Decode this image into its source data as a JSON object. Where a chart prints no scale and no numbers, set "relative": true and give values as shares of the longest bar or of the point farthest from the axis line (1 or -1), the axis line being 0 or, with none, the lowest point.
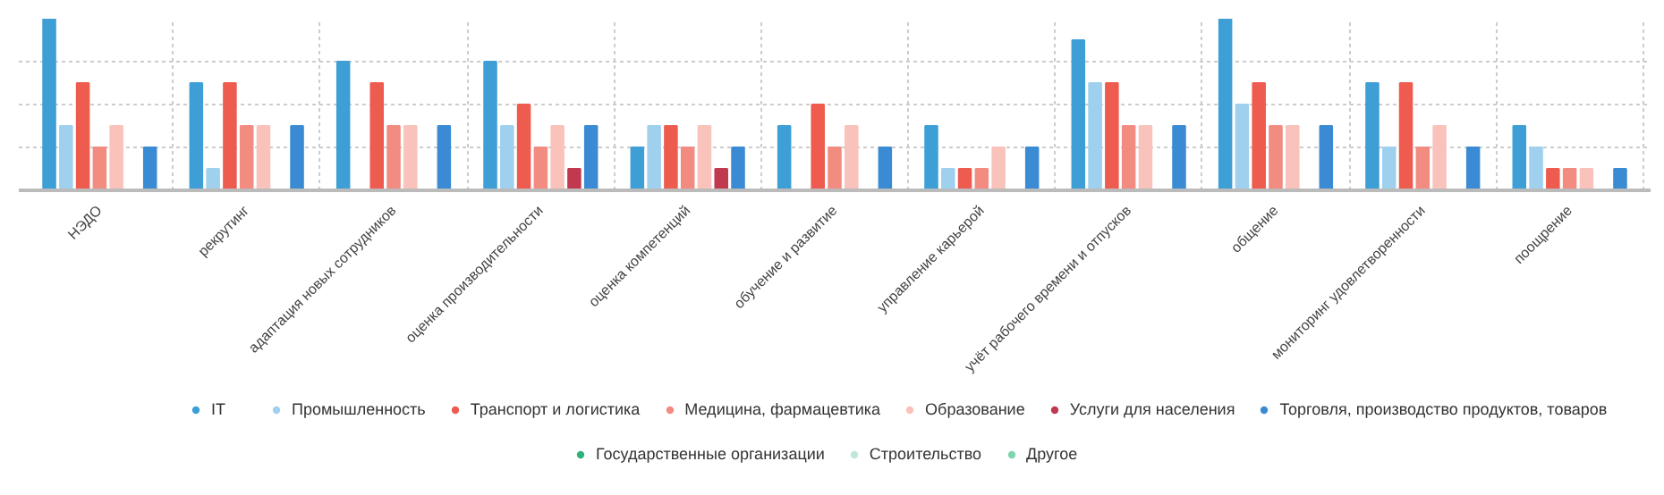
{
  "chart_data": {
    "type": "bar",
    "relative": true,
    "grid": true,
    "legend": "bottom",
    "categories": [
      "НЭДО",
      "рекрутинг",
      "адаптация новых сотрудников",
      "оценка производительности",
      "оценка компетенций",
      "обучение и развитие",
      "управление карьерой",
      "учёт рабочего времени и отпусков",
      "общение",
      "мониторинг удовлетворенности",
      "поощрение"
    ],
    "series": [
      {
        "name": "IT",
        "color": "#3d9fd6",
        "values": [
          1.0,
          0.625,
          0.75,
          0.75,
          0.25,
          0.375,
          0.375,
          0.875,
          1.0,
          0.625,
          0.375
        ]
      },
      {
        "name": "Промышленность",
        "color": "#9fd0ee",
        "values": [
          0.375,
          0.125,
          0,
          0.375,
          0.375,
          0,
          0.125,
          0.625,
          0.5,
          0.25,
          0.25
        ]
      },
      {
        "name": "Транспорт и логистика",
        "color": "#ee5b4f",
        "values": [
          0.625,
          0.625,
          0.625,
          0.5,
          0.375,
          0.5,
          0.125,
          0.625,
          0.625,
          0.625,
          0.125
        ]
      },
      {
        "name": "Медицина, фармацевтика",
        "color": "#f28b80",
        "values": [
          0.25,
          0.375,
          0.375,
          0.25,
          0.25,
          0.25,
          0.125,
          0.375,
          0.375,
          0.25,
          0.125
        ]
      },
      {
        "name": "Образование",
        "color": "#f9c3bc",
        "values": [
          0.375,
          0.375,
          0.375,
          0.375,
          0.375,
          0.375,
          0.25,
          0.375,
          0.375,
          0.375,
          0.125
        ]
      },
      {
        "name": "Услуги для населения",
        "color": "#c0394f",
        "values": [
          0,
          0,
          0,
          0.125,
          0.125,
          0,
          0,
          0,
          0,
          0,
          0
        ]
      },
      {
        "name": "Торговля, производство продуктов, товаров",
        "color": "#3a8bd4",
        "values": [
          0.25,
          0.375,
          0.375,
          0.375,
          0.25,
          0.25,
          0.25,
          0.375,
          0.375,
          0.25,
          0.125
        ]
      },
      {
        "name": "Государственные организации",
        "color": "#2fb37a",
        "values": [
          null,
          null,
          null,
          null,
          null,
          null,
          null,
          null,
          null,
          null,
          null
        ]
      },
      {
        "name": "Строительство",
        "color": "#bfe8d6",
        "values": [
          null,
          null,
          null,
          null,
          null,
          null,
          null,
          null,
          null,
          null,
          null
        ]
      },
      {
        "name": "Другое",
        "color": "#7fd4ae",
        "values": [
          null,
          null,
          null,
          null,
          null,
          null,
          null,
          null,
          null,
          null,
          null
        ]
      }
    ]
  }
}
